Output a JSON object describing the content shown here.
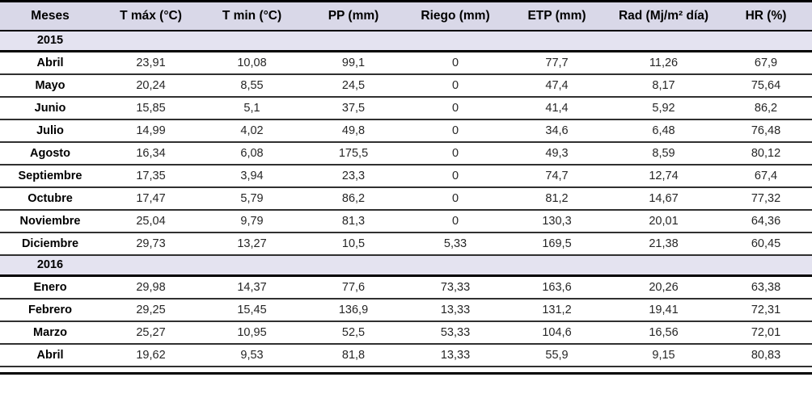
{
  "chart_data": {
    "type": "table",
    "columns": [
      {
        "key": "meses",
        "label": "Meses"
      },
      {
        "key": "t-max",
        "label": "T máx (°C)"
      },
      {
        "key": "t-min",
        "label": "T min (°C)"
      },
      {
        "key": "pp",
        "label": "PP (mm)"
      },
      {
        "key": "riego",
        "label": "Riego (mm)"
      },
      {
        "key": "etp",
        "label": "ETP (mm)"
      },
      {
        "key": "rad",
        "label": "Rad (Mj/m² día)"
      },
      {
        "key": "hr",
        "label": "HR (%)"
      }
    ],
    "sections": [
      {
        "year": "2015",
        "rows": [
          {
            "month": "Abril",
            "values": [
              "23,91",
              "10,08",
              "99,1",
              "0",
              "77,7",
              "11,26",
              "67,9"
            ]
          },
          {
            "month": "Mayo",
            "values": [
              "20,24",
              "8,55",
              "24,5",
              "0",
              "47,4",
              "8,17",
              "75,64"
            ]
          },
          {
            "month": "Junio",
            "values": [
              "15,85",
              "5,1",
              "37,5",
              "0",
              "41,4",
              "5,92",
              "86,2"
            ]
          },
          {
            "month": "Julio",
            "values": [
              "14,99",
              "4,02",
              "49,8",
              "0",
              "34,6",
              "6,48",
              "76,48"
            ]
          },
          {
            "month": "Agosto",
            "values": [
              "16,34",
              "6,08",
              "175,5",
              "0",
              "49,3",
              "8,59",
              "80,12"
            ]
          },
          {
            "month": "Septiembre",
            "values": [
              "17,35",
              "3,94",
              "23,3",
              "0",
              "74,7",
              "12,74",
              "67,4"
            ]
          },
          {
            "month": "Octubre",
            "values": [
              "17,47",
              "5,79",
              "86,2",
              "0",
              "81,2",
              "14,67",
              "77,32"
            ]
          },
          {
            "month": "Noviembre",
            "values": [
              "25,04",
              "9,79",
              "81,3",
              "0",
              "130,3",
              "20,01",
              "64,36"
            ]
          },
          {
            "month": "Diciembre",
            "values": [
              "29,73",
              "13,27",
              "10,5",
              "5,33",
              "169,5",
              "21,38",
              "60,45"
            ]
          }
        ]
      },
      {
        "year": "2016",
        "rows": [
          {
            "month": "Enero",
            "values": [
              "29,98",
              "14,37",
              "77,6",
              "73,33",
              "163,6",
              "20,26",
              "63,38"
            ]
          },
          {
            "month": "Febrero",
            "values": [
              "29,25",
              "15,45",
              "136,9",
              "13,33",
              "131,2",
              "19,41",
              "72,31"
            ]
          },
          {
            "month": "Marzo",
            "values": [
              "25,27",
              "10,95",
              "52,5",
              "53,33",
              "104,6",
              "16,56",
              "72,01"
            ]
          },
          {
            "month": "Abril",
            "values": [
              "19,62",
              "9,53",
              "81,8",
              "13,33",
              "55,9",
              "9,15",
              "80,83"
            ]
          }
        ]
      }
    ]
  },
  "style": {
    "header_bg": "#d9d8e8",
    "year_row_bg": "#e4e3f0",
    "border_color": "#000000",
    "text_color": "#262626"
  }
}
